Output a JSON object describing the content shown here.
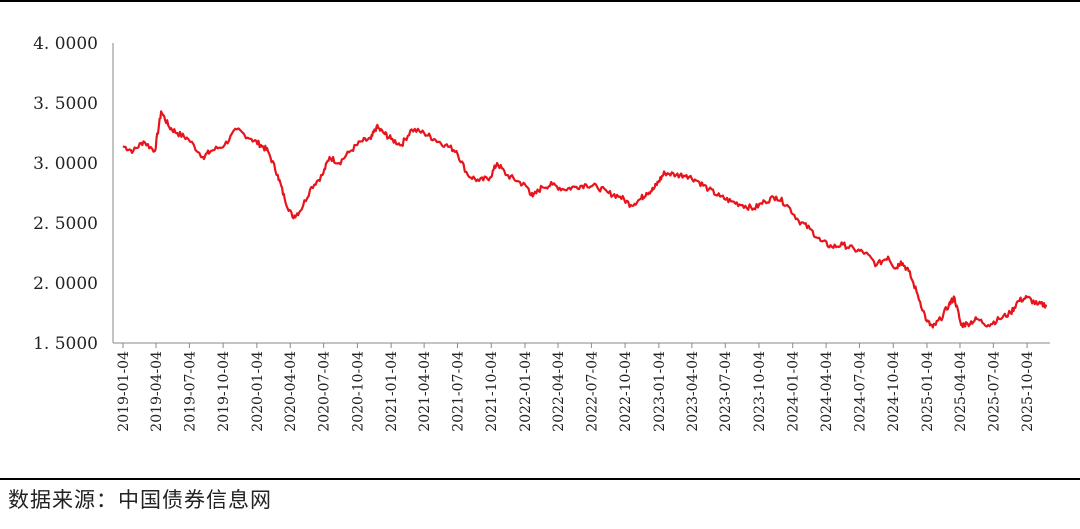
{
  "source_note": "数据来源：中国债券信息网",
  "chart_data": {
    "type": "line",
    "title": "",
    "xlabel": "",
    "ylabel": "",
    "ylim": [
      1.5,
      4.0
    ],
    "yticks": [
      "1.5000",
      "2.0000",
      "2.5000",
      "3.0000",
      "3.5000",
      "4.0000"
    ],
    "xticks": [
      "2019-01-04",
      "2019-04-04",
      "2019-07-04",
      "2019-10-04",
      "2020-01-04",
      "2020-04-04",
      "2020-07-04",
      "2020-10-04",
      "2021-01-04",
      "2021-04-04",
      "2021-07-04",
      "2021-10-04",
      "2022-01-04",
      "2022-04-04",
      "2022-07-04",
      "2022-10-04",
      "2023-01-04",
      "2023-04-04",
      "2023-07-04",
      "2023-10-04",
      "2024-01-04",
      "2024-04-04",
      "2024-07-04",
      "2024-10-04",
      "2025-01-04",
      "2025-04-04",
      "2025-07-04",
      "2025-10-04"
    ],
    "line_color": "#e8141b",
    "grid": false,
    "legend": "none",
    "series": [
      {
        "x": [
          "2019-01-04",
          "2019-02-01",
          "2019-03-01",
          "2019-04-01",
          "2019-04-18",
          "2019-05-10",
          "2019-06-01",
          "2019-07-01",
          "2019-08-10",
          "2019-09-01",
          "2019-10-08",
          "2019-11-10",
          "2019-12-20",
          "2020-01-15",
          "2020-02-03",
          "2020-03-01",
          "2020-03-20",
          "2020-04-10",
          "2020-05-01",
          "2020-06-01",
          "2020-07-01",
          "2020-07-20",
          "2020-08-15",
          "2020-09-15",
          "2020-10-15",
          "2020-11-10",
          "2020-11-25",
          "2020-12-15",
          "2021-01-04",
          "2021-02-01",
          "2021-03-01",
          "2021-04-04",
          "2021-05-01",
          "2021-06-01",
          "2021-07-01",
          "2021-08-01",
          "2021-09-01",
          "2021-10-01",
          "2021-10-20",
          "2021-11-15",
          "2021-12-15",
          "2022-01-10",
          "2022-01-25",
          "2022-02-20",
          "2022-03-20",
          "2022-04-20",
          "2022-05-20",
          "2022-06-20",
          "2022-07-20",
          "2022-08-20",
          "2022-09-20",
          "2022-10-20",
          "2022-11-15",
          "2022-12-01",
          "2022-12-20",
          "2023-01-04",
          "2023-01-20",
          "2023-02-20",
          "2023-03-20",
          "2023-04-20",
          "2023-05-20",
          "2023-06-20",
          "2023-07-20",
          "2023-08-20",
          "2023-09-20",
          "2023-10-20",
          "2023-11-20",
          "2023-12-20",
          "2024-01-20",
          "2024-02-20",
          "2024-03-20",
          "2024-04-20",
          "2024-05-20",
          "2024-06-20",
          "2024-07-20",
          "2024-08-20",
          "2024-09-20",
          "2024-10-10",
          "2024-10-25",
          "2024-11-15",
          "2024-12-10",
          "2025-01-04",
          "2025-01-20",
          "2025-02-10",
          "2025-03-05",
          "2025-03-20",
          "2025-04-07",
          "2025-04-25",
          "2025-05-20",
          "2025-06-20",
          "2025-07-20",
          "2025-08-20",
          "2025-09-10",
          "2025-10-04",
          "2025-11-01",
          "2025-11-25"
        ],
        "values": [
          3.14,
          3.1,
          3.18,
          3.1,
          3.43,
          3.3,
          3.25,
          3.2,
          3.05,
          3.1,
          3.15,
          3.28,
          3.2,
          3.15,
          3.1,
          2.9,
          2.7,
          2.55,
          2.6,
          2.8,
          2.9,
          3.05,
          3.0,
          3.1,
          3.18,
          3.2,
          3.3,
          3.25,
          3.2,
          3.15,
          3.28,
          3.25,
          3.2,
          3.15,
          3.1,
          2.9,
          2.85,
          2.88,
          3.0,
          2.9,
          2.85,
          2.8,
          2.72,
          2.8,
          2.82,
          2.78,
          2.8,
          2.82,
          2.8,
          2.75,
          2.72,
          2.65,
          2.7,
          2.75,
          2.78,
          2.85,
          2.92,
          2.9,
          2.9,
          2.85,
          2.78,
          2.72,
          2.68,
          2.65,
          2.62,
          2.68,
          2.72,
          2.65,
          2.52,
          2.45,
          2.35,
          2.3,
          2.32,
          2.28,
          2.25,
          2.15,
          2.22,
          2.12,
          2.18,
          2.1,
          1.9,
          1.68,
          1.63,
          1.7,
          1.82,
          1.88,
          1.65,
          1.66,
          1.7,
          1.65,
          1.7,
          1.75,
          1.85,
          1.88,
          1.82,
          1.82
        ]
      }
    ]
  }
}
